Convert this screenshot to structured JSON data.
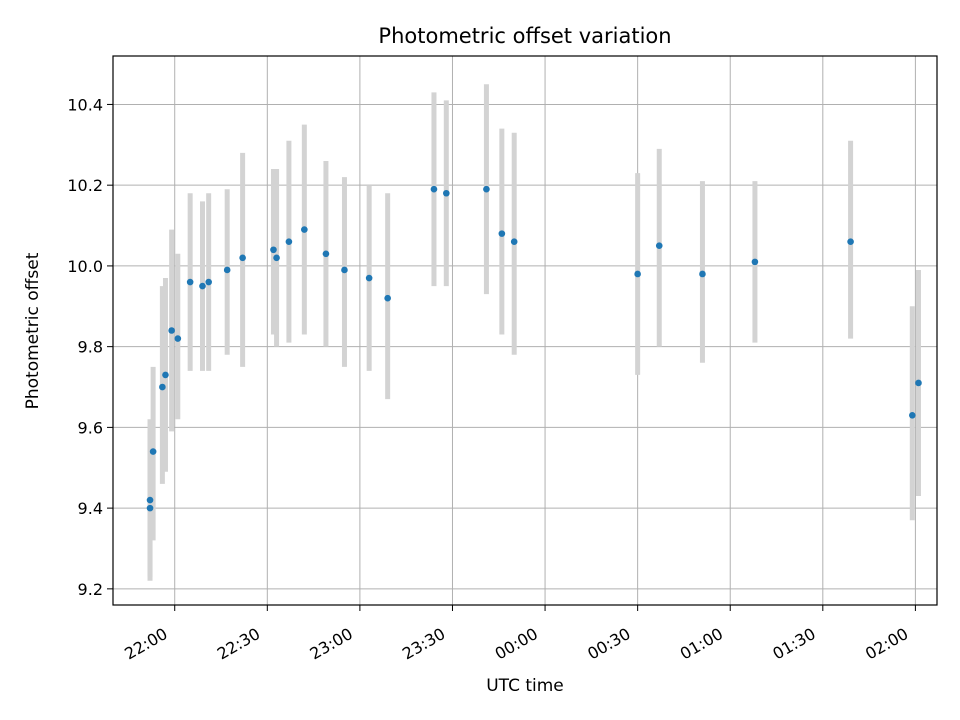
{
  "chart_data": {
    "type": "scatter",
    "title": "Photometric offset variation",
    "xlabel": "UTC time",
    "ylabel": "Photometric offset",
    "x_unit": "UTC time (HH:MM)",
    "xlim": [
      "21:40",
      "02:07"
    ],
    "ylim": [
      9.16,
      10.52
    ],
    "x_ticks": [
      "22:00",
      "22:30",
      "23:00",
      "23:30",
      "00:00",
      "00:30",
      "01:00",
      "01:30",
      "02:00"
    ],
    "y_ticks": [
      "9.2",
      "9.4",
      "9.6",
      "9.8",
      "10.0",
      "10.2",
      "10.4"
    ],
    "grid": true,
    "colors": {
      "points": "#1f77b4",
      "errorbars": "#d3d3d3",
      "grid": "#b0b0b0"
    },
    "points": [
      {
        "x": "21:52",
        "y": 9.42,
        "yerr_low": 9.23,
        "yerr_high": 9.62
      },
      {
        "x": "21:52",
        "y": 9.4,
        "yerr_low": 9.22,
        "yerr_high": 9.59
      },
      {
        "x": "21:53",
        "y": 9.54,
        "yerr_low": 9.32,
        "yerr_high": 9.75
      },
      {
        "x": "21:56",
        "y": 9.7,
        "yerr_low": 9.46,
        "yerr_high": 9.95
      },
      {
        "x": "21:57",
        "y": 9.73,
        "yerr_low": 9.49,
        "yerr_high": 9.97
      },
      {
        "x": "21:59",
        "y": 9.84,
        "yerr_low": 9.59,
        "yerr_high": 10.09
      },
      {
        "x": "22:01",
        "y": 9.82,
        "yerr_low": 9.62,
        "yerr_high": 10.03
      },
      {
        "x": "22:05",
        "y": 9.96,
        "yerr_low": 9.74,
        "yerr_high": 10.18
      },
      {
        "x": "22:09",
        "y": 9.95,
        "yerr_low": 9.74,
        "yerr_high": 10.16
      },
      {
        "x": "22:11",
        "y": 9.96,
        "yerr_low": 9.74,
        "yerr_high": 10.18
      },
      {
        "x": "22:17",
        "y": 9.99,
        "yerr_low": 9.78,
        "yerr_high": 10.19
      },
      {
        "x": "22:22",
        "y": 10.02,
        "yerr_low": 9.75,
        "yerr_high": 10.28
      },
      {
        "x": "22:32",
        "y": 10.04,
        "yerr_low": 9.83,
        "yerr_high": 10.24
      },
      {
        "x": "22:33",
        "y": 10.02,
        "yerr_low": 9.8,
        "yerr_high": 10.24
      },
      {
        "x": "22:37",
        "y": 10.06,
        "yerr_low": 9.81,
        "yerr_high": 10.31
      },
      {
        "x": "22:42",
        "y": 10.09,
        "yerr_low": 9.83,
        "yerr_high": 10.35
      },
      {
        "x": "22:49",
        "y": 10.03,
        "yerr_low": 9.8,
        "yerr_high": 10.26
      },
      {
        "x": "22:55",
        "y": 9.99,
        "yerr_low": 9.75,
        "yerr_high": 10.22
      },
      {
        "x": "23:03",
        "y": 9.97,
        "yerr_low": 9.74,
        "yerr_high": 10.2
      },
      {
        "x": "23:09",
        "y": 9.92,
        "yerr_low": 9.67,
        "yerr_high": 10.18
      },
      {
        "x": "23:24",
        "y": 10.19,
        "yerr_low": 9.95,
        "yerr_high": 10.43
      },
      {
        "x": "23:28",
        "y": 10.18,
        "yerr_low": 9.95,
        "yerr_high": 10.41
      },
      {
        "x": "23:41",
        "y": 10.19,
        "yerr_low": 9.93,
        "yerr_high": 10.45
      },
      {
        "x": "23:46",
        "y": 10.08,
        "yerr_low": 9.83,
        "yerr_high": 10.34
      },
      {
        "x": "23:50",
        "y": 10.06,
        "yerr_low": 9.78,
        "yerr_high": 10.33
      },
      {
        "x": "00:30",
        "y": 9.98,
        "yerr_low": 9.73,
        "yerr_high": 10.23
      },
      {
        "x": "00:37",
        "y": 10.05,
        "yerr_low": 9.8,
        "yerr_high": 10.29
      },
      {
        "x": "00:51",
        "y": 9.98,
        "yerr_low": 9.76,
        "yerr_high": 10.21
      },
      {
        "x": "01:08",
        "y": 10.01,
        "yerr_low": 9.81,
        "yerr_high": 10.21
      },
      {
        "x": "01:39",
        "y": 10.06,
        "yerr_low": 9.82,
        "yerr_high": 10.31
      },
      {
        "x": "01:59",
        "y": 9.63,
        "yerr_low": 9.37,
        "yerr_high": 9.9
      },
      {
        "x": "02:01",
        "y": 9.71,
        "yerr_low": 9.43,
        "yerr_high": 9.99
      }
    ]
  }
}
